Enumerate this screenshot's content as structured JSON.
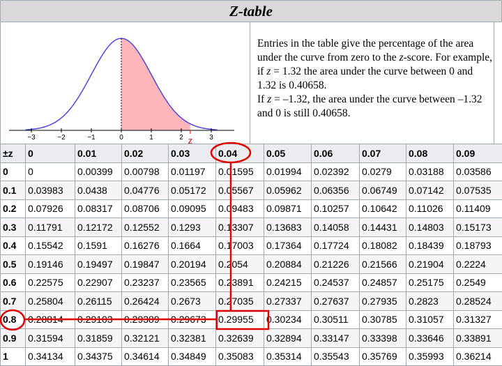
{
  "header": {
    "title": "Z-table"
  },
  "graph": {
    "ticks": [
      "−3",
      "−2",
      "−1",
      "0",
      "1",
      "2",
      "3"
    ],
    "z_label": "z"
  },
  "description": {
    "first": [
      "Entries in the table give the percentage of the area under the curve from zero to the ",
      "z",
      "-score. For example, if ",
      "z",
      " = 1.32 the area under the curve between 0 and 1.32 is 0.40658."
    ],
    "second": [
      "If ",
      "z",
      " = –1.32, the area under the curve between –1.32 and 0 is still 0.40658."
    ]
  },
  "table": {
    "header": [
      "±z",
      "0",
      "0.01",
      "0.02",
      "0.03",
      "0.04",
      "0.05",
      "0.06",
      "0.07",
      "0.08",
      "0.09"
    ],
    "rows": [
      [
        "0",
        "0",
        "0.00399",
        "0.00798",
        "0.01197",
        "0.01595",
        "0.01994",
        "0.02392",
        "0.0279",
        "0.03188",
        "0.03586"
      ],
      [
        "0.1",
        "0.03983",
        "0.0438",
        "0.04776",
        "0.05172",
        "0.05567",
        "0.05962",
        "0.06356",
        "0.06749",
        "0.07142",
        "0.07535"
      ],
      [
        "0.2",
        "0.07926",
        "0.08317",
        "0.08706",
        "0.09095",
        "0.09483",
        "0.09871",
        "0.10257",
        "0.10642",
        "0.11026",
        "0.11409"
      ],
      [
        "0.3",
        "0.11791",
        "0.12172",
        "0.12552",
        "0.1293",
        "0.13307",
        "0.13683",
        "0.14058",
        "0.14431",
        "0.14803",
        "0.15173"
      ],
      [
        "0.4",
        "0.15542",
        "0.1591",
        "0.16276",
        "0.1664",
        "0.17003",
        "0.17364",
        "0.17724",
        "0.18082",
        "0.18439",
        "0.18793"
      ],
      [
        "0.5",
        "0.19146",
        "0.19497",
        "0.19847",
        "0.20194",
        "0.2054",
        "0.20884",
        "0.21226",
        "0.21566",
        "0.21904",
        "0.2224"
      ],
      [
        "0.6",
        "0.22575",
        "0.22907",
        "0.23237",
        "0.23565",
        "0.23891",
        "0.24215",
        "0.24537",
        "0.24857",
        "0.25175",
        "0.2549"
      ],
      [
        "0.7",
        "0.25804",
        "0.26115",
        "0.26424",
        "0.2673",
        "0.27035",
        "0.27337",
        "0.27637",
        "0.27935",
        "0.2823",
        "0.28524"
      ],
      [
        "0.8",
        "0.28814",
        "0.29103",
        "0.29389",
        "0.29673",
        "0.29955",
        "0.30234",
        "0.30511",
        "0.30785",
        "0.31057",
        "0.31327"
      ],
      [
        "0.9",
        "0.31594",
        "0.31859",
        "0.32121",
        "0.32381",
        "0.32639",
        "0.32894",
        "0.33147",
        "0.33398",
        "0.33646",
        "0.33891"
      ],
      [
        "1",
        "0.34134",
        "0.34375",
        "0.34614",
        "0.34849",
        "0.35083",
        "0.35314",
        "0.35543",
        "0.35769",
        "0.35993",
        "0.36214"
      ]
    ]
  }
}
